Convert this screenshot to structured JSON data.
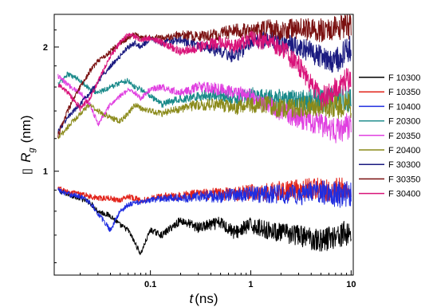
{
  "chart_data": {
    "type": "line",
    "title": "",
    "xlabel": "t (ns)",
    "xlabel_parts": {
      "var": "t",
      "unit": "(ns)"
    },
    "ylabel": "[] Rg (nm)",
    "ylabel_parts": {
      "prefix": "[]",
      "var": "R",
      "sub": "g",
      "unit": "(nm)"
    },
    "xscale": "log",
    "yscale": "log",
    "xlim": [
      0.011,
      10.5
    ],
    "ylim": [
      0.56,
      2.4
    ],
    "x_ticks": [
      {
        "value": 0.1,
        "label": "0.1"
      },
      {
        "value": 1,
        "label": "1"
      },
      {
        "value": 10,
        "label": "10"
      }
    ],
    "y_ticks": [
      {
        "value": 1,
        "label": "1"
      },
      {
        "value": 2,
        "label": "2"
      }
    ],
    "grid": false,
    "legend_position": "right",
    "series": [
      {
        "name": "F 10300",
        "color": "#000000",
        "x": [
          0.012,
          0.015,
          0.02,
          0.025,
          0.03,
          0.04,
          0.05,
          0.06,
          0.07,
          0.08,
          0.1,
          0.13,
          0.2,
          0.3,
          0.5,
          0.7,
          1,
          1.5,
          2,
          3,
          5,
          7,
          10
        ],
        "y": [
          0.9,
          0.88,
          0.86,
          0.84,
          0.8,
          0.78,
          0.74,
          0.72,
          0.67,
          0.63,
          0.72,
          0.7,
          0.76,
          0.73,
          0.75,
          0.71,
          0.74,
          0.72,
          0.71,
          0.7,
          0.68,
          0.7,
          0.71
        ]
      },
      {
        "name": "F 10350",
        "color": "#e2231a",
        "x": [
          0.012,
          0.015,
          0.02,
          0.025,
          0.03,
          0.04,
          0.05,
          0.06,
          0.07,
          0.08,
          0.1,
          0.13,
          0.2,
          0.3,
          0.5,
          0.7,
          1,
          1.5,
          2,
          3,
          5,
          7,
          10
        ],
        "y": [
          0.91,
          0.89,
          0.88,
          0.87,
          0.86,
          0.86,
          0.85,
          0.87,
          0.86,
          0.85,
          0.86,
          0.87,
          0.87,
          0.88,
          0.88,
          0.88,
          0.89,
          0.89,
          0.9,
          0.9,
          0.91,
          0.9,
          0.9
        ]
      },
      {
        "name": "F 10400",
        "color": "#1f2de0",
        "x": [
          0.012,
          0.015,
          0.02,
          0.025,
          0.03,
          0.04,
          0.05,
          0.06,
          0.07,
          0.08,
          0.1,
          0.13,
          0.2,
          0.3,
          0.5,
          0.7,
          1,
          1.5,
          2,
          3,
          5,
          7,
          10
        ],
        "y": [
          0.9,
          0.88,
          0.87,
          0.84,
          0.79,
          0.72,
          0.8,
          0.83,
          0.84,
          0.84,
          0.85,
          0.86,
          0.86,
          0.87,
          0.87,
          0.88,
          0.88,
          0.88,
          0.88,
          0.88,
          0.89,
          0.88,
          0.88
        ]
      },
      {
        "name": "F 20300",
        "color": "#1a8a8a",
        "x": [
          0.012,
          0.015,
          0.02,
          0.025,
          0.03,
          0.04,
          0.05,
          0.06,
          0.07,
          0.08,
          0.1,
          0.13,
          0.2,
          0.3,
          0.5,
          0.7,
          1,
          1.5,
          2,
          3,
          5,
          7,
          10
        ],
        "y": [
          1.62,
          1.72,
          1.66,
          1.58,
          1.55,
          1.6,
          1.64,
          1.66,
          1.6,
          1.58,
          1.52,
          1.45,
          1.5,
          1.52,
          1.54,
          1.5,
          1.53,
          1.5,
          1.5,
          1.48,
          1.49,
          1.5,
          1.5
        ]
      },
      {
        "name": "F 20350",
        "color": "#e040e0",
        "x": [
          0.012,
          0.015,
          0.02,
          0.025,
          0.03,
          0.04,
          0.05,
          0.06,
          0.07,
          0.08,
          0.1,
          0.13,
          0.2,
          0.3,
          0.5,
          0.7,
          1,
          1.5,
          2,
          3,
          5,
          7,
          10
        ],
        "y": [
          1.7,
          1.62,
          1.55,
          1.45,
          1.3,
          1.45,
          1.52,
          1.58,
          1.55,
          1.5,
          1.58,
          1.6,
          1.55,
          1.6,
          1.58,
          1.55,
          1.52,
          1.45,
          1.4,
          1.35,
          1.3,
          1.25,
          1.3
        ]
      },
      {
        "name": "F 20400",
        "color": "#8a8a1a",
        "x": [
          0.012,
          0.015,
          0.02,
          0.025,
          0.03,
          0.04,
          0.05,
          0.06,
          0.07,
          0.08,
          0.1,
          0.13,
          0.2,
          0.3,
          0.5,
          0.7,
          1,
          1.5,
          2,
          3,
          5,
          7,
          10
        ],
        "y": [
          1.2,
          1.28,
          1.38,
          1.45,
          1.4,
          1.35,
          1.32,
          1.38,
          1.45,
          1.42,
          1.4,
          1.38,
          1.42,
          1.45,
          1.45,
          1.42,
          1.45,
          1.45,
          1.42,
          1.43,
          1.45,
          1.44,
          1.45
        ]
      },
      {
        "name": "F 30300",
        "color": "#1a1a80",
        "x": [
          0.012,
          0.015,
          0.02,
          0.025,
          0.03,
          0.04,
          0.05,
          0.06,
          0.07,
          0.08,
          0.1,
          0.13,
          0.2,
          0.3,
          0.5,
          0.7,
          1,
          1.5,
          2,
          3,
          5,
          7,
          10
        ],
        "y": [
          1.25,
          1.35,
          1.45,
          1.55,
          1.65,
          1.8,
          1.9,
          2.0,
          2.05,
          2.0,
          2.1,
          2.05,
          2.08,
          2.02,
          1.95,
          1.9,
          2.05,
          2.1,
          2.05,
          2.0,
          1.9,
          1.85,
          2.0
        ]
      },
      {
        "name": "F 30350",
        "color": "#7a1010",
        "x": [
          0.012,
          0.015,
          0.02,
          0.025,
          0.03,
          0.04,
          0.05,
          0.06,
          0.07,
          0.08,
          0.1,
          0.13,
          0.2,
          0.3,
          0.5,
          0.7,
          1,
          1.5,
          2,
          3,
          5,
          7,
          10
        ],
        "y": [
          1.22,
          1.4,
          1.6,
          1.75,
          1.85,
          1.95,
          2.05,
          2.1,
          2.15,
          2.1,
          2.12,
          2.1,
          2.15,
          2.12,
          2.15,
          2.2,
          2.18,
          2.22,
          2.2,
          2.22,
          2.2,
          2.22,
          2.25
        ]
      },
      {
        "name": "F 30400",
        "color": "#d9147a",
        "x": [
          0.012,
          0.015,
          0.02,
          0.025,
          0.03,
          0.04,
          0.05,
          0.06,
          0.07,
          0.08,
          0.1,
          0.13,
          0.2,
          0.3,
          0.5,
          0.7,
          1,
          1.5,
          2,
          3,
          5,
          7,
          10
        ],
        "y": [
          1.62,
          1.55,
          1.42,
          1.5,
          1.65,
          1.9,
          2.05,
          2.15,
          2.12,
          2.08,
          2.1,
          2.05,
          1.95,
          2.0,
          2.05,
          2.0,
          2.1,
          2.05,
          2.0,
          1.8,
          1.5,
          1.6,
          1.7
        ]
      }
    ]
  }
}
